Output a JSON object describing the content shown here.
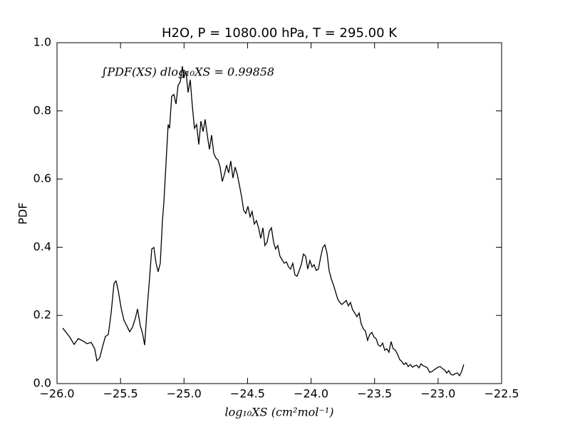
{
  "chart_data": {
    "type": "line",
    "title": "H2O, P = 1080.00 hPa, T = 295.00 K",
    "xlabel": "log₁₀XS (cm²mol⁻¹)",
    "ylabel": "PDF",
    "annotation": "∫PDF(XS) dlog₁₀XS = 0.99858",
    "color": "#000000",
    "xlim": [
      -26,
      -22.5
    ],
    "ylim": [
      0,
      1
    ],
    "xticks": [
      {
        "value": -26,
        "label": "−26.0"
      },
      {
        "value": -25.5,
        "label": "−25.5"
      },
      {
        "value": -25,
        "label": "−25.0"
      },
      {
        "value": -24.5,
        "label": "−24.5"
      },
      {
        "value": -24,
        "label": "−24.0"
      },
      {
        "value": -23.5,
        "label": "−23.5"
      },
      {
        "value": -23,
        "label": "−23.0"
      },
      {
        "value": -22.5,
        "label": "−22.5"
      }
    ],
    "yticks": [
      {
        "value": 0,
        "label": "0.0"
      },
      0.2,
      0.4,
      0.6,
      0.8,
      {
        "value": 1,
        "label": "1.0"
      }
    ],
    "x": [
      -25.955,
      -25.899,
      -25.865,
      -25.832,
      -25.787,
      -25.764,
      -25.731,
      -25.703,
      -25.686,
      -25.664,
      -25.641,
      -25.619,
      -25.596,
      -25.574,
      -25.551,
      -25.535,
      -25.518,
      -25.495,
      -25.473,
      -25.45,
      -25.428,
      -25.406,
      -25.383,
      -25.366,
      -25.344,
      -25.327,
      -25.31,
      -25.293,
      -25.271,
      -25.254,
      -25.237,
      -25.22,
      -25.204,
      -25.187,
      -25.17,
      -25.159,
      -25.142,
      -25.125,
      -25.114,
      -25.097,
      -25.08,
      -25.063,
      -25.047,
      -25.03,
      -25.013,
      -25.002,
      -24.985,
      -24.968,
      -24.951,
      -24.934,
      -24.918,
      -24.901,
      -24.884,
      -24.867,
      -24.85,
      -24.834,
      -24.817,
      -24.8,
      -24.783,
      -24.766,
      -24.75,
      -24.733,
      -24.716,
      -24.699,
      -24.682,
      -24.665,
      -24.649,
      -24.632,
      -24.615,
      -24.598,
      -24.581,
      -24.564,
      -24.548,
      -24.531,
      -24.514,
      -24.497,
      -24.48,
      -24.464,
      -24.447,
      -24.43,
      -24.413,
      -24.396,
      -24.379,
      -24.363,
      -24.346,
      -24.329,
      -24.312,
      -24.295,
      -24.279,
      -24.262,
      -24.245,
      -24.228,
      -24.211,
      -24.194,
      -24.177,
      -24.161,
      -24.144,
      -24.127,
      -24.11,
      -24.093,
      -24.077,
      -24.06,
      -24.043,
      -24.026,
      -24.009,
      -23.992,
      -23.976,
      -23.959,
      -23.942,
      -23.925,
      -23.908,
      -23.891,
      -23.874,
      -23.858,
      -23.841,
      -23.824,
      -23.807,
      -23.79,
      -23.774,
      -23.757,
      -23.74,
      -23.723,
      -23.706,
      -23.69,
      -23.673,
      -23.656,
      -23.639,
      -23.622,
      -23.605,
      -23.589,
      -23.572,
      -23.555,
      -23.538,
      -23.521,
      -23.504,
      -23.488,
      -23.471,
      -23.454,
      -23.437,
      -23.42,
      -23.403,
      -23.387,
      -23.37,
      -23.353,
      -23.336,
      -23.319,
      -23.303,
      -23.286,
      -23.269,
      -23.252,
      -23.235,
      -23.218,
      -23.202,
      -23.185,
      -23.168,
      -23.151,
      -23.134,
      -23.117,
      -23.101,
      -23.084,
      -23.067,
      -23.05,
      -23.033,
      -23.017,
      -23.0,
      -22.983,
      -22.966,
      -22.949,
      -22.932,
      -22.916,
      -22.899,
      -22.882,
      -22.865,
      -22.848,
      -22.831,
      -22.815,
      -22.798
    ],
    "values": [
      0.163,
      0.136,
      0.115,
      0.132,
      0.123,
      0.117,
      0.121,
      0.102,
      0.067,
      0.075,
      0.109,
      0.138,
      0.144,
      0.207,
      0.294,
      0.301,
      0.273,
      0.221,
      0.186,
      0.169,
      0.152,
      0.165,
      0.192,
      0.219,
      0.169,
      0.148,
      0.113,
      0.207,
      0.311,
      0.395,
      0.399,
      0.353,
      0.328,
      0.353,
      0.478,
      0.53,
      0.645,
      0.76,
      0.749,
      0.843,
      0.848,
      0.82,
      0.875,
      0.885,
      0.931,
      0.896,
      0.917,
      0.854,
      0.891,
      0.812,
      0.749,
      0.76,
      0.701,
      0.77,
      0.739,
      0.775,
      0.729,
      0.687,
      0.729,
      0.676,
      0.662,
      0.656,
      0.635,
      0.593,
      0.614,
      0.641,
      0.618,
      0.653,
      0.603,
      0.635,
      0.614,
      0.582,
      0.551,
      0.509,
      0.499,
      0.52,
      0.489,
      0.505,
      0.468,
      0.478,
      0.457,
      0.426,
      0.457,
      0.405,
      0.415,
      0.447,
      0.457,
      0.415,
      0.395,
      0.405,
      0.374,
      0.363,
      0.353,
      0.357,
      0.342,
      0.336,
      0.353,
      0.319,
      0.315,
      0.332,
      0.349,
      0.38,
      0.374,
      0.336,
      0.361,
      0.342,
      0.349,
      0.332,
      0.336,
      0.37,
      0.399,
      0.407,
      0.382,
      0.332,
      0.307,
      0.29,
      0.269,
      0.248,
      0.238,
      0.232,
      0.238,
      0.244,
      0.228,
      0.238,
      0.217,
      0.207,
      0.196,
      0.207,
      0.175,
      0.161,
      0.154,
      0.127,
      0.144,
      0.15,
      0.136,
      0.132,
      0.113,
      0.109,
      0.119,
      0.098,
      0.102,
      0.092,
      0.123,
      0.102,
      0.098,
      0.086,
      0.071,
      0.065,
      0.056,
      0.061,
      0.05,
      0.056,
      0.048,
      0.052,
      0.054,
      0.046,
      0.058,
      0.052,
      0.05,
      0.046,
      0.033,
      0.035,
      0.04,
      0.044,
      0.048,
      0.05,
      0.044,
      0.04,
      0.031,
      0.038,
      0.027,
      0.025,
      0.029,
      0.031,
      0.023,
      0.035,
      0.056
    ]
  }
}
